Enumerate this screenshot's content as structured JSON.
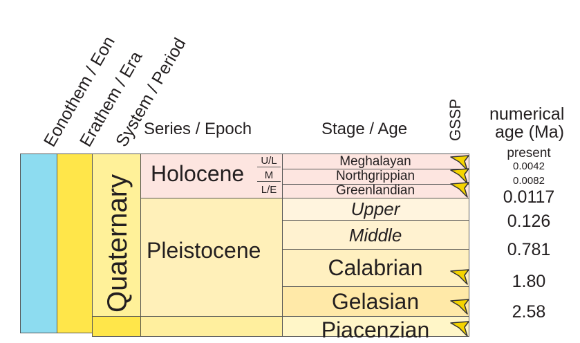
{
  "headers": {
    "eonothem": "Eonothem / Eon",
    "erathem": "Erathem / Era",
    "system": "System / Period",
    "series": "Series / Epoch",
    "stage": "Stage / Age",
    "gssp": "GSSP",
    "numerical_line1": "numerical",
    "numerical_line2": "age (Ma)"
  },
  "colors": {
    "eon": "#8ddcf0",
    "era": "#ffe64a",
    "quaternary": "#fff199",
    "holocene": "#fde5e0",
    "pleistocene": "#fff0b9",
    "gelasian": "#ffe9a8",
    "pliocene": "#ffef9e",
    "piacenzian": "#fff6c8",
    "gssp_spike": "#f5d400"
  },
  "system": {
    "label": "Quaternary"
  },
  "series": [
    {
      "label": "Holocene"
    },
    {
      "label": "Pleistocene"
    }
  ],
  "subseries": [
    "U/L",
    "M",
    "L/E"
  ],
  "stages": [
    {
      "label": "Meghalayan",
      "italic": false,
      "gssp": true
    },
    {
      "label": "Northgrippian",
      "italic": false,
      "gssp": true
    },
    {
      "label": "Greenlandian",
      "italic": false,
      "gssp": true
    },
    {
      "label": "Upper",
      "italic": true,
      "gssp": false
    },
    {
      "label": "Middle",
      "italic": true,
      "gssp": false
    },
    {
      "label": "Calabrian",
      "italic": false,
      "gssp": true
    },
    {
      "label": "Gelasian",
      "italic": false,
      "gssp": true
    },
    {
      "label": "Piacenzian",
      "italic": false,
      "gssp": true
    }
  ],
  "ages": [
    "present",
    "0.0042",
    "0.0082",
    "0.0117",
    "0.126",
    "0.781",
    "1.80",
    "2.58"
  ]
}
